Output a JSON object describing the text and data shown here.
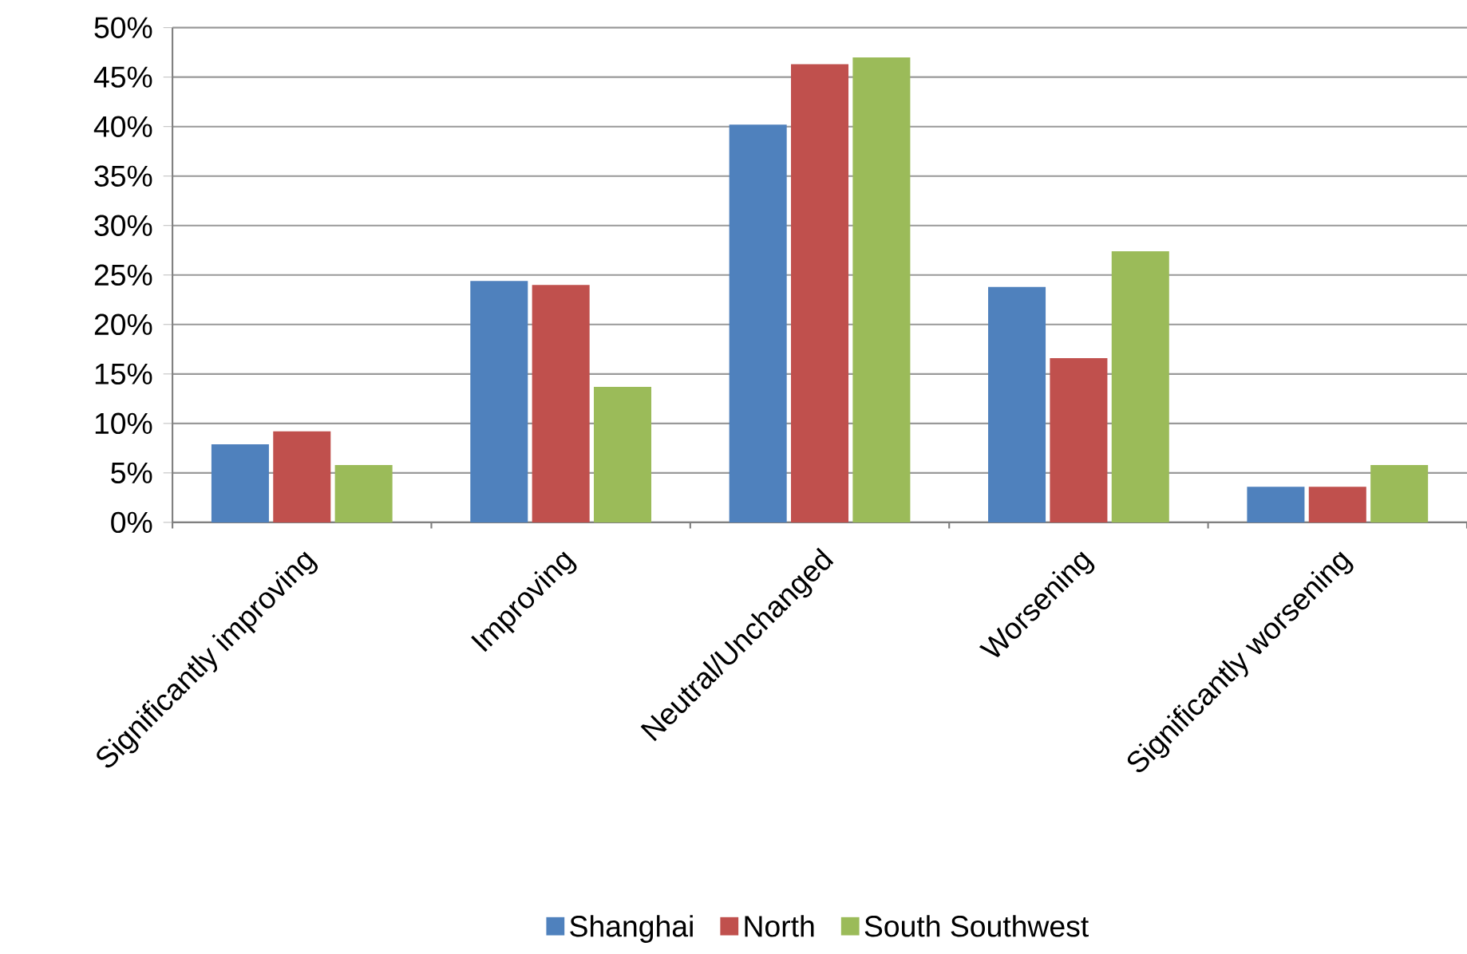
{
  "chart_data": {
    "type": "bar",
    "categories": [
      "Significantly improving",
      "Improving",
      "Neutral/Unchanged",
      "Worsening",
      "Significantly worsening"
    ],
    "series": [
      {
        "name": "Shanghai",
        "color": "#4f81bd",
        "values": [
          7.9,
          24.4,
          40.2,
          23.8,
          3.6
        ]
      },
      {
        "name": "North",
        "color": "#c0504d",
        "values": [
          9.2,
          24.0,
          46.3,
          16.6,
          3.6
        ]
      },
      {
        "name": "South Southwest",
        "color": "#9bbb59",
        "values": [
          5.8,
          13.7,
          47.0,
          27.4,
          5.8
        ]
      }
    ],
    "ylim": [
      0,
      50
    ],
    "yticks": [
      {
        "value": 0,
        "label": "0%"
      },
      {
        "value": 5,
        "label": "5%"
      },
      {
        "value": 10,
        "label": "10%"
      },
      {
        "value": 15,
        "label": "15%"
      },
      {
        "value": 20,
        "label": "20%"
      },
      {
        "value": 25,
        "label": "25%"
      },
      {
        "value": 30,
        "label": "30%"
      },
      {
        "value": 35,
        "label": "35%"
      },
      {
        "value": 40,
        "label": "40%"
      },
      {
        "value": 45,
        "label": "45%"
      },
      {
        "value": 50,
        "label": "50%"
      }
    ],
    "grid": "y",
    "legend": "bottom"
  }
}
